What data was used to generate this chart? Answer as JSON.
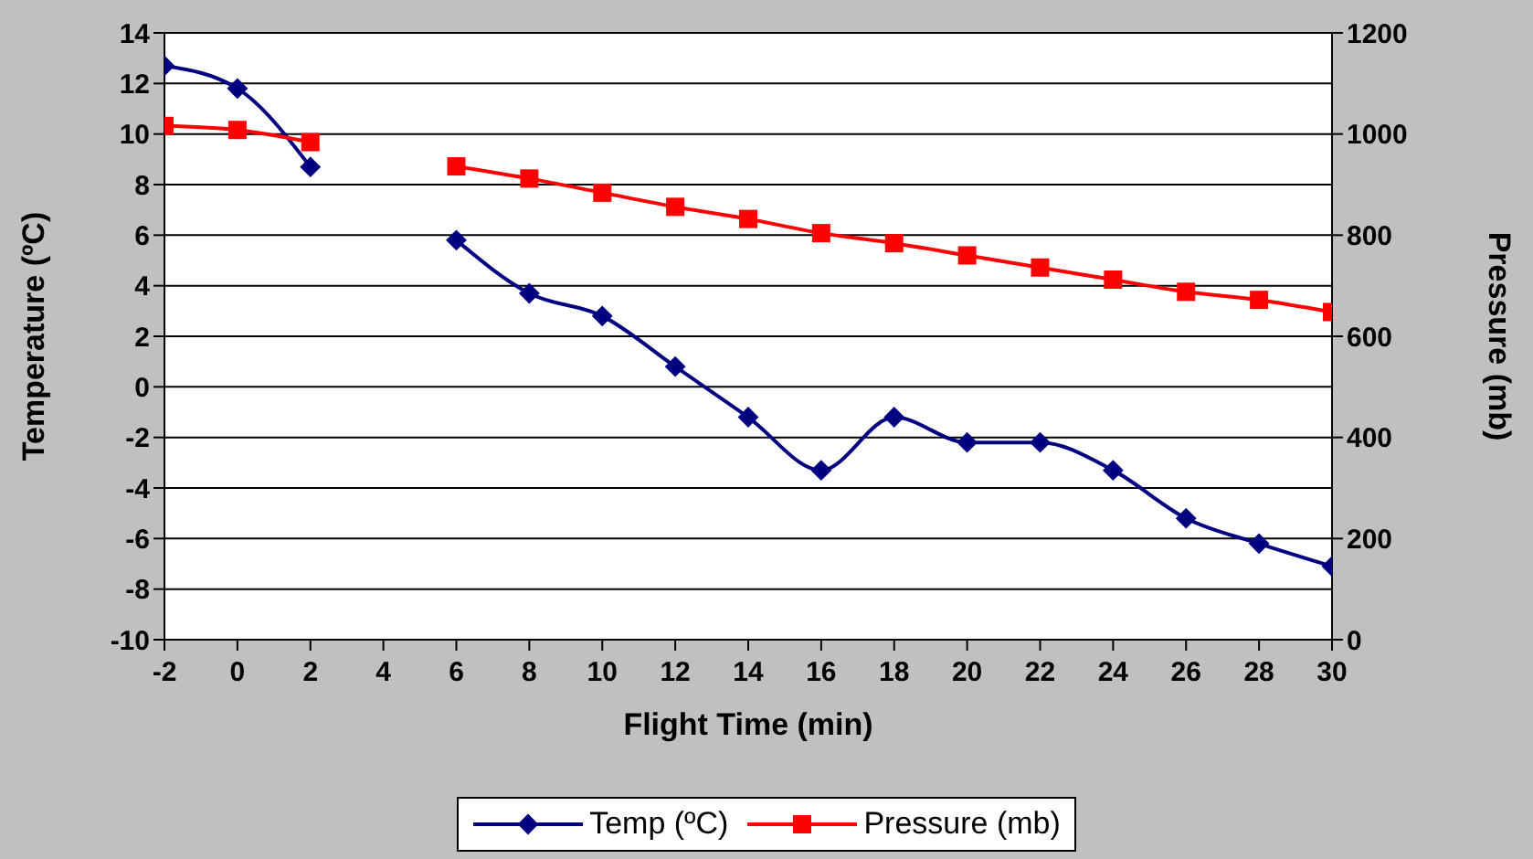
{
  "chart_data": {
    "type": "line",
    "xlabel": "Flight Time (min)",
    "ylabel": "Temperature (ºC)",
    "y2label": "Pressure (mb)",
    "x": [
      -2,
      0,
      2,
      4,
      6,
      8,
      10,
      12,
      14,
      16,
      18,
      20,
      22,
      24,
      26,
      28,
      30
    ],
    "series": [
      {
        "name": "Temp (ºC)",
        "color": "#000080",
        "marker": "diamond",
        "values": [
          12.7,
          11.8,
          8.7,
          null,
          5.8,
          3.7,
          2.8,
          0.8,
          -1.2,
          -3.3,
          -1.2,
          -2.2,
          -2.2,
          -3.3,
          -5.2,
          -6.2,
          -7.1
        ]
      },
      {
        "name": "Pressure (mb)",
        "color": "#ff0000",
        "marker": "square",
        "axis": "y2",
        "values": [
          1016,
          1008,
          984,
          null,
          936,
          912,
          884,
          856,
          832,
          804,
          784,
          760,
          736,
          712,
          688,
          672,
          648
        ]
      }
    ],
    "xlim": [
      -2,
      30
    ],
    "xticks": [
      -2,
      0,
      2,
      4,
      6,
      8,
      10,
      12,
      14,
      16,
      18,
      20,
      22,
      24,
      26,
      28,
      30
    ],
    "ylim": [
      -10,
      14
    ],
    "yticks": [
      -10,
      -8,
      -6,
      -4,
      -2,
      0,
      2,
      4,
      6,
      8,
      10,
      12,
      14
    ],
    "y2lim": [
      0,
      1200
    ],
    "y2ticks": [
      0,
      200,
      400,
      600,
      800,
      1000,
      1200
    ],
    "grid": "y",
    "legend": "bottom"
  }
}
